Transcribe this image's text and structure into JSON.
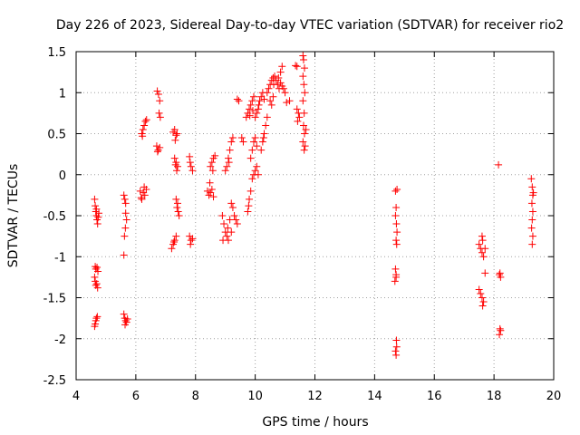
{
  "chart_data": {
    "type": "scatter",
    "title": "Day 226 of 2023, Sidereal Day-to-day VTEC variation (SDTVAR) for receiver rio2",
    "xlabel": "GPS time / hours",
    "ylabel": "SDTVAR / TECUs",
    "xlim": [
      4,
      20
    ],
    "ylim": [
      -2.5,
      1.5
    ],
    "x_ticks": [
      4,
      6,
      8,
      10,
      12,
      14,
      16,
      18,
      20
    ],
    "x_tick_labels": [
      "4",
      "6",
      "8",
      "10",
      "12",
      "14",
      "16",
      "18",
      "20"
    ],
    "y_ticks": [
      -2.5,
      -2,
      -1.5,
      -1,
      -0.5,
      0,
      0.5,
      1,
      1.5
    ],
    "y_tick_labels": [
      "-2.5",
      "-2",
      "-1.5",
      "-1",
      "-0.5",
      "0",
      "0.5",
      "1",
      "1.5"
    ],
    "grid": true,
    "marker": "+",
    "color": "#ff0000",
    "series": [
      {
        "name": "SDTVAR",
        "points": [
          [
            4.62,
            -0.3
          ],
          [
            4.64,
            -0.38
          ],
          [
            4.66,
            -0.45
          ],
          [
            4.68,
            -0.5
          ],
          [
            4.7,
            -0.55
          ],
          [
            4.72,
            -0.6
          ],
          [
            4.68,
            -0.42
          ],
          [
            4.74,
            -0.52
          ],
          [
            4.76,
            -0.47
          ],
          [
            4.64,
            -1.12
          ],
          [
            4.66,
            -1.15
          ],
          [
            4.7,
            -1.13
          ],
          [
            4.73,
            -1.18
          ],
          [
            4.64,
            -1.3
          ],
          [
            4.66,
            -1.35
          ],
          [
            4.69,
            -1.33
          ],
          [
            4.72,
            -1.38
          ],
          [
            4.62,
            -1.25
          ],
          [
            4.64,
            -1.82
          ],
          [
            4.66,
            -1.78
          ],
          [
            4.68,
            -1.75
          ],
          [
            4.71,
            -1.73
          ],
          [
            4.62,
            -1.85
          ],
          [
            5.6,
            -0.25
          ],
          [
            5.63,
            -0.3
          ],
          [
            5.66,
            -0.35
          ],
          [
            5.69,
            -0.55
          ],
          [
            5.65,
            -0.65
          ],
          [
            5.62,
            -0.75
          ],
          [
            5.6,
            -0.98
          ],
          [
            5.66,
            -0.47
          ],
          [
            5.6,
            -1.7
          ],
          [
            5.63,
            -1.75
          ],
          [
            5.66,
            -1.78
          ],
          [
            5.69,
            -1.8
          ],
          [
            5.72,
            -1.76
          ],
          [
            5.64,
            -1.83
          ],
          [
            6.15,
            -0.2
          ],
          [
            6.2,
            -0.3
          ],
          [
            6.25,
            -0.22
          ],
          [
            6.3,
            -0.25
          ],
          [
            6.35,
            -0.18
          ],
          [
            6.18,
            -0.28
          ],
          [
            6.28,
            -0.15
          ],
          [
            6.2,
            0.5
          ],
          [
            6.24,
            0.55
          ],
          [
            6.28,
            0.6
          ],
          [
            6.32,
            0.65
          ],
          [
            6.36,
            0.67
          ],
          [
            6.22,
            0.47
          ],
          [
            6.72,
            1.02
          ],
          [
            6.76,
            0.98
          ],
          [
            6.8,
            0.9
          ],
          [
            6.78,
            0.75
          ],
          [
            6.82,
            0.7
          ],
          [
            6.7,
            0.35
          ],
          [
            6.75,
            0.3
          ],
          [
            6.8,
            0.33
          ],
          [
            6.73,
            0.28
          ],
          [
            7.2,
            -0.9
          ],
          [
            7.25,
            -0.85
          ],
          [
            7.3,
            -0.8
          ],
          [
            7.35,
            -0.75
          ],
          [
            7.28,
            -0.82
          ],
          [
            7.3,
            0.55
          ],
          [
            7.35,
            0.48
          ],
          [
            7.38,
            0.5
          ],
          [
            7.32,
            0.42
          ],
          [
            7.25,
            0.52
          ],
          [
            7.3,
            0.2
          ],
          [
            7.35,
            0.15
          ],
          [
            7.4,
            0.1
          ],
          [
            7.37,
            0.05
          ],
          [
            7.33,
            0.12
          ],
          [
            7.35,
            -0.3
          ],
          [
            7.38,
            -0.4
          ],
          [
            7.42,
            -0.45
          ],
          [
            7.45,
            -0.5
          ],
          [
            7.4,
            -0.35
          ],
          [
            7.8,
            0.22
          ],
          [
            7.85,
            0.1
          ],
          [
            7.9,
            0.05
          ],
          [
            7.82,
            0.15
          ],
          [
            7.8,
            -0.75
          ],
          [
            7.85,
            -0.8
          ],
          [
            7.9,
            -0.78
          ],
          [
            7.83,
            -0.85
          ],
          [
            8.4,
            -0.2
          ],
          [
            8.45,
            -0.25
          ],
          [
            8.5,
            -0.22
          ],
          [
            8.55,
            -0.18
          ],
          [
            8.6,
            -0.27
          ],
          [
            8.48,
            -0.1
          ],
          [
            8.5,
            0.1
          ],
          [
            8.55,
            0.15
          ],
          [
            8.6,
            0.2
          ],
          [
            8.65,
            0.23
          ],
          [
            8.58,
            0.05
          ],
          [
            8.9,
            -0.5
          ],
          [
            8.95,
            -0.6
          ],
          [
            9.0,
            -0.7
          ],
          [
            9.05,
            -0.75
          ],
          [
            9.1,
            -0.8
          ],
          [
            9.15,
            -0.55
          ],
          [
            8.92,
            -0.8
          ],
          [
            9.08,
            -0.65
          ],
          [
            9.2,
            -0.7
          ],
          [
            9.0,
            0.05
          ],
          [
            9.05,
            0.1
          ],
          [
            9.1,
            0.2
          ],
          [
            9.15,
            0.3
          ],
          [
            9.2,
            0.4
          ],
          [
            9.25,
            0.45
          ],
          [
            9.12,
            0.15
          ],
          [
            9.2,
            -0.35
          ],
          [
            9.25,
            -0.4
          ],
          [
            9.3,
            -0.5
          ],
          [
            9.35,
            -0.55
          ],
          [
            9.4,
            -0.6
          ],
          [
            9.4,
            0.92
          ],
          [
            9.45,
            0.9
          ],
          [
            9.55,
            0.45
          ],
          [
            9.6,
            0.4
          ],
          [
            9.7,
            0.7
          ],
          [
            9.75,
            0.75
          ],
          [
            9.8,
            0.8
          ],
          [
            9.85,
            0.85
          ],
          [
            9.9,
            0.9
          ],
          [
            9.95,
            0.95
          ],
          [
            9.82,
            0.72
          ],
          [
            9.92,
            0.78
          ],
          [
            9.75,
            -0.45
          ],
          [
            9.8,
            -0.3
          ],
          [
            9.85,
            -0.2
          ],
          [
            9.9,
            -0.05
          ],
          [
            9.95,
            0.0
          ],
          [
            10.0,
            0.05
          ],
          [
            10.05,
            0.1
          ],
          [
            10.1,
            0.0
          ],
          [
            9.78,
            -0.38
          ],
          [
            9.85,
            0.2
          ],
          [
            9.9,
            0.3
          ],
          [
            9.95,
            0.4
          ],
          [
            10.0,
            0.45
          ],
          [
            10.05,
            0.35
          ],
          [
            10.0,
            0.7
          ],
          [
            10.05,
            0.75
          ],
          [
            10.1,
            0.8
          ],
          [
            10.15,
            0.9
          ],
          [
            10.2,
            0.95
          ],
          [
            10.25,
            1.0
          ],
          [
            10.3,
            0.92
          ],
          [
            10.12,
            0.85
          ],
          [
            10.2,
            0.3
          ],
          [
            10.25,
            0.4
          ],
          [
            10.3,
            0.5
          ],
          [
            10.35,
            0.6
          ],
          [
            10.4,
            0.7
          ],
          [
            10.28,
            0.45
          ],
          [
            10.4,
            1.0
          ],
          [
            10.45,
            1.05
          ],
          [
            10.5,
            1.1
          ],
          [
            10.55,
            1.15
          ],
          [
            10.6,
            1.18
          ],
          [
            10.65,
            1.2
          ],
          [
            10.7,
            1.15
          ],
          [
            10.75,
            1.1
          ],
          [
            10.8,
            1.05
          ],
          [
            10.85,
            1.12
          ],
          [
            10.9,
            1.08
          ],
          [
            10.95,
            1.05
          ],
          [
            11.0,
            1.0
          ],
          [
            10.62,
            1.1
          ],
          [
            10.78,
            1.18
          ],
          [
            10.5,
            0.9
          ],
          [
            10.55,
            0.85
          ],
          [
            10.6,
            0.95
          ],
          [
            10.9,
            1.32
          ],
          [
            10.85,
            1.25
          ],
          [
            11.15,
            0.9
          ],
          [
            11.05,
            0.88
          ],
          [
            11.35,
            1.33
          ],
          [
            11.4,
            1.32
          ],
          [
            11.4,
            0.8
          ],
          [
            11.45,
            0.75
          ],
          [
            11.42,
            0.65
          ],
          [
            11.48,
            0.7
          ],
          [
            11.6,
            1.45
          ],
          [
            11.62,
            1.4
          ],
          [
            11.65,
            1.3
          ],
          [
            11.6,
            1.2
          ],
          [
            11.63,
            1.1
          ],
          [
            11.66,
            1.0
          ],
          [
            11.6,
            0.9
          ],
          [
            11.64,
            0.75
          ],
          [
            11.62,
            0.6
          ],
          [
            11.65,
            0.5
          ],
          [
            11.6,
            0.4
          ],
          [
            11.64,
            0.3
          ],
          [
            11.67,
            0.35
          ],
          [
            11.7,
            0.55
          ],
          [
            14.7,
            -0.2
          ],
          [
            14.75,
            -0.18
          ],
          [
            14.72,
            -0.4
          ],
          [
            14.7,
            -0.5
          ],
          [
            14.73,
            -0.6
          ],
          [
            14.75,
            -0.7
          ],
          [
            14.72,
            -0.8
          ],
          [
            14.74,
            -0.85
          ],
          [
            14.7,
            -1.15
          ],
          [
            14.72,
            -1.22
          ],
          [
            14.68,
            -1.3
          ],
          [
            14.72,
            -1.25
          ],
          [
            14.7,
            -2.15
          ],
          [
            14.72,
            -2.2
          ],
          [
            14.74,
            -2.1
          ],
          [
            14.73,
            -2.02
          ],
          [
            17.5,
            -0.85
          ],
          [
            17.55,
            -0.9
          ],
          [
            17.6,
            -0.95
          ],
          [
            17.65,
            -1.0
          ],
          [
            17.6,
            -0.75
          ],
          [
            17.62,
            -0.8
          ],
          [
            17.7,
            -0.9
          ],
          [
            17.5,
            -1.4
          ],
          [
            17.55,
            -1.45
          ],
          [
            17.6,
            -1.5
          ],
          [
            17.65,
            -1.55
          ],
          [
            17.62,
            -1.6
          ],
          [
            17.7,
            -1.2
          ],
          [
            18.15,
            0.12
          ],
          [
            18.2,
            -1.2
          ],
          [
            18.22,
            -1.25
          ],
          [
            18.18,
            -1.22
          ],
          [
            18.2,
            -1.88
          ],
          [
            18.22,
            -1.9
          ],
          [
            18.18,
            -1.95
          ],
          [
            19.25,
            -0.05
          ],
          [
            19.28,
            -0.15
          ],
          [
            19.3,
            -0.25
          ],
          [
            19.27,
            -0.35
          ],
          [
            19.3,
            -0.45
          ],
          [
            19.28,
            -0.55
          ],
          [
            19.26,
            -0.65
          ],
          [
            19.3,
            -0.75
          ],
          [
            19.28,
            -0.85
          ],
          [
            19.32,
            -0.22
          ]
        ]
      }
    ]
  }
}
